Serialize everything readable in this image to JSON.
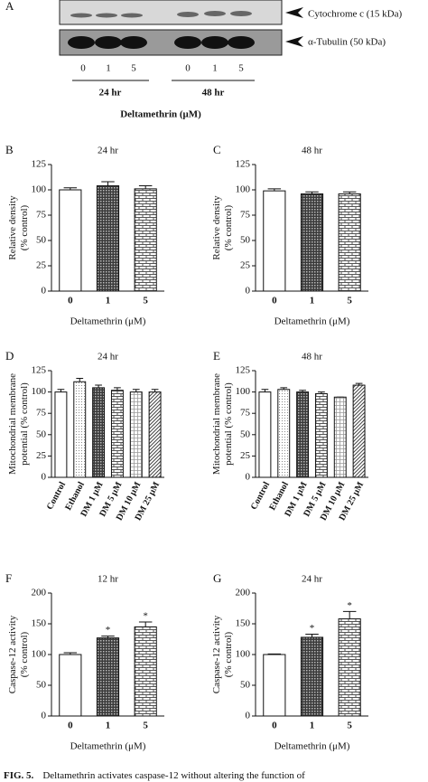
{
  "blot": {
    "panel": "A",
    "bands": [
      "Cytochrome c (15 kDa)",
      "α-Tubulin (50 kDa)"
    ],
    "lanes": [
      "0",
      "1",
      "5",
      "0",
      "1",
      "5"
    ],
    "groups": [
      "24 hr",
      "48 hr"
    ],
    "xlabel": "Deltamethrin (μM)"
  },
  "chart_data": [
    {
      "type": "bar",
      "panel": "B",
      "title": "24 hr",
      "ylabel": [
        "Relative density",
        "(% control)"
      ],
      "xlabel": "Deltamethrin (μM)",
      "categories": [
        "0",
        "1",
        "5"
      ],
      "values": [
        100,
        104,
        101
      ],
      "errors": [
        2,
        4,
        3
      ],
      "bar_fills": [
        "white",
        "check",
        "brick"
      ],
      "ylim": [
        0,
        125
      ],
      "yticks": [
        0,
        25,
        50,
        75,
        100,
        125
      ]
    },
    {
      "type": "bar",
      "panel": "C",
      "title": "48 hr",
      "ylabel": [
        "Relative density",
        "(% control)"
      ],
      "xlabel": "Deltamethrin (μM)",
      "categories": [
        "0",
        "1",
        "5"
      ],
      "values": [
        99,
        96,
        96
      ],
      "errors": [
        2,
        2,
        2
      ],
      "bar_fills": [
        "white",
        "check",
        "brick"
      ],
      "ylim": [
        0,
        125
      ],
      "yticks": [
        0,
        25,
        50,
        75,
        100,
        125
      ]
    },
    {
      "type": "bar",
      "panel": "D",
      "title": "24 hr",
      "ylabel": [
        "Mitochondrial membrane",
        "potential (% control)"
      ],
      "categories": [
        "Control",
        "Ethanol",
        "DM 1 μM",
        "DM 5 μM",
        "DM 10 μM",
        "DM 25 μM"
      ],
      "values": [
        100,
        112,
        105,
        102,
        100,
        100
      ],
      "errors": [
        3,
        4,
        3,
        3,
        3,
        3
      ],
      "bar_fills": [
        "white",
        "dots",
        "check",
        "brick",
        "grid",
        "diag"
      ],
      "ylim": [
        0,
        125
      ],
      "yticks": [
        0,
        25,
        50,
        75,
        100,
        125
      ]
    },
    {
      "type": "bar",
      "panel": "E",
      "title": "48 hr",
      "ylabel": [
        "Mitochondrial membrane",
        "potential (% control)"
      ],
      "categories": [
        "Control",
        "Ethanol",
        "DM 1 μM",
        "DM 5 μM",
        "DM 10 μM",
        "DM 25 μM"
      ],
      "values": [
        100,
        103,
        100,
        98,
        94,
        108
      ],
      "errors": [
        3,
        2,
        2,
        2,
        0,
        2
      ],
      "bar_fills": [
        "white",
        "dots",
        "check",
        "brick",
        "grid",
        "diag"
      ],
      "ylim": [
        0,
        125
      ],
      "yticks": [
        0,
        25,
        50,
        75,
        100,
        125
      ]
    },
    {
      "type": "bar",
      "panel": "F",
      "title": "12 hr",
      "ylabel": [
        "Caspase-12 activity",
        "(% control)"
      ],
      "xlabel": "Deltamethrin (μM)",
      "categories": [
        "0",
        "1",
        "5"
      ],
      "values": [
        100,
        127,
        145
      ],
      "errors": [
        3,
        3,
        8
      ],
      "significance": [
        null,
        "*",
        "*"
      ],
      "bar_fills": [
        "white",
        "check",
        "brick"
      ],
      "ylim": [
        0,
        200
      ],
      "yticks": [
        0,
        50,
        100,
        150,
        200
      ]
    },
    {
      "type": "bar",
      "panel": "G",
      "title": "24 hr",
      "ylabel": [
        "Caspase-12 activity",
        "(% control)"
      ],
      "xlabel": "Deltamethrin (μM)",
      "categories": [
        "0",
        "1",
        "5"
      ],
      "values": [
        100,
        128,
        158
      ],
      "errors": [
        1,
        5,
        12
      ],
      "significance": [
        null,
        "*",
        "*"
      ],
      "bar_fills": [
        "white",
        "check",
        "brick"
      ],
      "ylim": [
        0,
        200
      ],
      "yticks": [
        0,
        50,
        100,
        150,
        200
      ]
    }
  ],
  "caption": {
    "label": "FIG. 5.",
    "text": "Deltamethrin activates caspase-12 without altering the function of"
  }
}
